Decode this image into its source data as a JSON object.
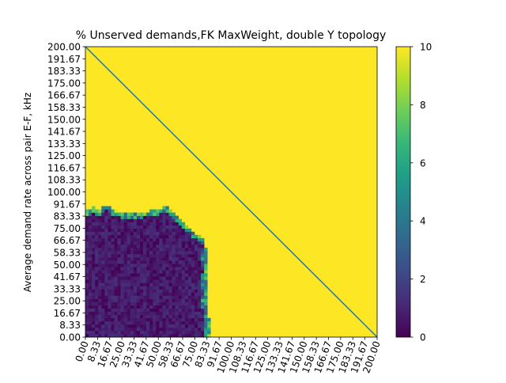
{
  "chart_data": {
    "type": "heatmap",
    "title": "% Unserved demands,FK MaxWeight, double Y topology",
    "xlabel": "",
    "ylabel": "Average demand rate across pair E-F, kHz",
    "x_ticks": [
      "0.00",
      "8.33",
      "16.67",
      "25.00",
      "33.33",
      "41.67",
      "50.00",
      "58.33",
      "66.67",
      "75.00",
      "83.33",
      "91.67",
      "100.00",
      "108.33",
      "116.67",
      "125.00",
      "133.33",
      "141.67",
      "150.00",
      "158.33",
      "166.67",
      "175.00",
      "183.33",
      "191.67",
      "200.00"
    ],
    "y_ticks": [
      "0.00",
      "8.33",
      "16.67",
      "25.00",
      "33.33",
      "41.67",
      "50.00",
      "58.33",
      "66.67",
      "75.00",
      "83.33",
      "91.67",
      "100.00",
      "108.33",
      "116.67",
      "125.00",
      "133.33",
      "141.67",
      "150.00",
      "158.33",
      "166.67",
      "175.00",
      "183.33",
      "191.67",
      "200.00"
    ],
    "xlim": [
      0,
      200
    ],
    "ylim": [
      0,
      200
    ],
    "colorbar": {
      "min": 0,
      "max": 10,
      "ticks": [
        "0",
        "2",
        "4",
        "6",
        "8",
        "10"
      ],
      "colormap": "viridis"
    },
    "diagonal_line": {
      "from": [
        0,
        200
      ],
      "to": [
        200,
        0
      ],
      "color": "#1f77b4"
    },
    "regions": [
      {
        "description": "low unserved region",
        "x_range": [
          0,
          85
        ],
        "y_range": [
          0,
          85
        ],
        "value_range": [
          0,
          1.5
        ]
      },
      {
        "description": "everything else",
        "value": 10
      }
    ],
    "boundary": {
      "top_edge": [
        [
          0,
          85
        ],
        [
          5,
          88
        ],
        [
          10,
          86
        ],
        [
          15,
          90
        ],
        [
          20,
          86
        ],
        [
          30,
          84
        ],
        [
          40,
          85
        ],
        [
          50,
          86
        ],
        [
          55,
          90
        ],
        [
          60,
          85
        ],
        [
          65,
          80
        ],
        [
          70,
          75
        ],
        [
          75,
          70
        ],
        [
          80,
          68
        ],
        [
          82,
          60
        ]
      ],
      "right_edge": [
        [
          82,
          60
        ],
        [
          83,
          45
        ],
        [
          82,
          30
        ],
        [
          83,
          15
        ],
        [
          84,
          5
        ],
        [
          84,
          0
        ]
      ]
    }
  }
}
